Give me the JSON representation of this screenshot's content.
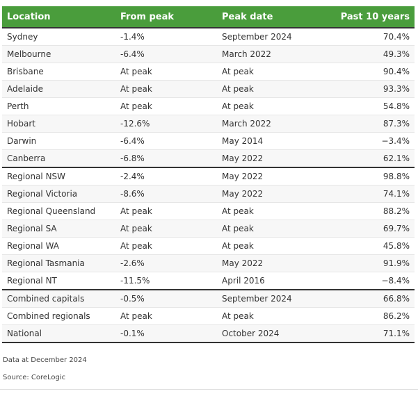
{
  "table": {
    "headers": [
      "Location",
      "From peak",
      "Peak date",
      "Past 10 years"
    ],
    "rows": [
      [
        "Sydney",
        "-1.4%",
        "September 2024",
        "70.4%"
      ],
      [
        "Melbourne",
        "-6.4%",
        "March 2022",
        "49.3%"
      ],
      [
        "Brisbane",
        "At peak",
        "At peak",
        "90.4%"
      ],
      [
        "Adelaide",
        "At peak",
        "At peak",
        "93.3%"
      ],
      [
        "Perth",
        "At peak",
        "At peak",
        "54.8%"
      ],
      [
        "Hobart",
        "-12.6%",
        "March 2022",
        "87.3%"
      ],
      [
        "Darwin",
        "-6.4%",
        "May 2014",
        "−3.4%"
      ],
      [
        "Canberra",
        "-6.8%",
        "May 2022",
        "62.1%"
      ],
      [
        "Regional NSW",
        "-2.4%",
        "May 2022",
        "98.8%"
      ],
      [
        "Regional Victoria",
        "-8.6%",
        "May 2022",
        "74.1%"
      ],
      [
        "Regional Queensland",
        "At peak",
        "At peak",
        "88.2%"
      ],
      [
        "Regional SA",
        "At peak",
        "At peak",
        "69.7%"
      ],
      [
        "Regional WA",
        "At peak",
        "At peak",
        "45.8%"
      ],
      [
        "Regional Tasmania",
        "-2.6%",
        "May 2022",
        "91.9%"
      ],
      [
        "Regional NT",
        "-11.5%",
        "April 2016",
        "−8.4%"
      ],
      [
        "Combined capitals",
        "-0.5%",
        "September 2024",
        "66.8%"
      ],
      [
        "Combined regionals",
        "At peak",
        "At peak",
        "86.2%"
      ],
      [
        "National",
        "-0.1%",
        "October 2024",
        "71.1%"
      ]
    ]
  },
  "notes": {
    "data_date": "Data at December 2024",
    "source": "Source: CoreLogic"
  },
  "colors": {
    "header_bg": "#4a9d3c",
    "header_text": "#ffffff"
  }
}
